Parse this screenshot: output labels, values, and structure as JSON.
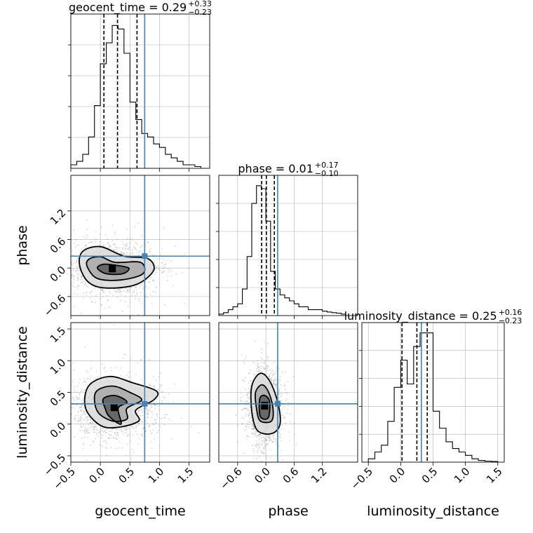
{
  "chart_data": {
    "type": "corner",
    "parameters": [
      "geocent_time",
      "phase",
      "luminosity_distance"
    ],
    "axis_labels": {
      "x": [
        "geocent_time",
        "phase",
        "luminosity_distance"
      ],
      "y_row1": "phase",
      "y_row2": "luminosity_distance"
    },
    "ranges": {
      "geocent_time": [
        -0.5,
        1.85
      ],
      "phase": [
        -1.0,
        1.95
      ],
      "luminosity_distance": [
        -0.6,
        1.6
      ]
    },
    "ticks": {
      "geocent_time": [
        "−0.5",
        "0.0",
        "0.5",
        "1.0",
        "1.5"
      ],
      "phase": [
        "−0.6",
        "0.0",
        "0.6",
        "1.2"
      ],
      "luminosity_distance": [
        "−0.5",
        "0.0",
        "0.5",
        "1.0",
        "1.5"
      ]
    },
    "tick_values": {
      "geocent_time": [
        -0.5,
        0.0,
        0.5,
        1.0,
        1.5
      ],
      "phase": [
        -0.6,
        0.0,
        0.6,
        1.2
      ],
      "luminosity_distance": [
        -0.5,
        0.0,
        0.5,
        1.0,
        1.5
      ]
    },
    "titles": [
      {
        "label": "geocent_time = 0.29",
        "sup": "+0.33",
        "sub": "−0.23"
      },
      {
        "label": "phase = 0.01",
        "sup": "+0.17",
        "sub": "−0.10"
      },
      {
        "label": "luminosity_distance = 0.25",
        "sup": "+0.16",
        "sub": "−0.23"
      }
    ],
    "truths": {
      "geocent_time": 0.75,
      "phase": 0.25,
      "luminosity_distance": 0.32
    },
    "quantiles": {
      "geocent_time": [
        0.06,
        0.29,
        0.62
      ],
      "phase": [
        -0.09,
        0.01,
        0.18
      ],
      "luminosity_distance": [
        0.02,
        0.25,
        0.41
      ]
    },
    "histograms": {
      "geocent_time": {
        "edges": [
          -0.5,
          -0.4,
          -0.3,
          -0.2,
          -0.1,
          0.0,
          0.1,
          0.2,
          0.3,
          0.4,
          0.5,
          0.6,
          0.7,
          0.8,
          0.9,
          1.0,
          1.1,
          1.2,
          1.3,
          1.4,
          1.5,
          1.6,
          1.7
        ],
        "counts": [
          1,
          2,
          4,
          9,
          18,
          30,
          36,
          41,
          40,
          33,
          19,
          14,
          10,
          9,
          7,
          6,
          4,
          3,
          2,
          1,
          1,
          0.5
        ]
      },
      "phase": {
        "edges": [
          -1.0,
          -0.9,
          -0.8,
          -0.7,
          -0.6,
          -0.5,
          -0.4,
          -0.3,
          -0.2,
          -0.1,
          0.0,
          0.1,
          0.2,
          0.3,
          0.4,
          0.5,
          0.6,
          0.7,
          0.8,
          0.9,
          1.0,
          1.1,
          1.2,
          1.3,
          1.4,
          1.5,
          1.6,
          1.7
        ],
        "counts": [
          0.5,
          1,
          2,
          3,
          4,
          9,
          20,
          38,
          44,
          43,
          32,
          15,
          9,
          7,
          6,
          5,
          4,
          3,
          3,
          2,
          2,
          2,
          1.5,
          1.2,
          1,
          0.8,
          0.5
        ]
      },
      "luminosity_distance": {
        "edges": [
          -0.5,
          -0.4,
          -0.3,
          -0.2,
          -0.1,
          0.0,
          0.1,
          0.2,
          0.3,
          0.4,
          0.5,
          0.6,
          0.7,
          0.8,
          0.9,
          1.0,
          1.1,
          1.2,
          1.3,
          1.4,
          1.5
        ],
        "counts": [
          1,
          3,
          5,
          12,
          22,
          30,
          23,
          34,
          38,
          38,
          15,
          10,
          6,
          4,
          3,
          2,
          1,
          0.5,
          0.3,
          0.2
        ]
      }
    },
    "contours": {
      "geocent_time_vs_phase": [
        [
          [
            -0.35,
            0.05
          ],
          [
            -0.2,
            -0.3
          ],
          [
            0.1,
            -0.42
          ],
          [
            0.6,
            -0.35
          ],
          [
            0.9,
            -0.05
          ],
          [
            0.8,
            0.2
          ],
          [
            0.4,
            0.25
          ],
          [
            0.0,
            0.45
          ],
          [
            -0.3,
            0.35
          ]
        ],
        [
          [
            -0.22,
            0.02
          ],
          [
            -0.05,
            -0.22
          ],
          [
            0.35,
            -0.25
          ],
          [
            0.72,
            -0.12
          ],
          [
            0.68,
            0.12
          ],
          [
            0.25,
            0.12
          ],
          [
            0.0,
            0.24
          ],
          [
            -0.2,
            0.18
          ]
        ],
        [
          [
            -0.05,
            0.0
          ],
          [
            0.1,
            -0.12
          ],
          [
            0.38,
            -0.12
          ],
          [
            0.48,
            0.0
          ],
          [
            0.25,
            0.06
          ],
          [
            0.05,
            0.08
          ]
        ]
      ],
      "geocent_time_vs_luminosity_distance": [
        [
          [
            -0.2,
            0.6
          ],
          [
            0.15,
            0.75
          ],
          [
            0.55,
            0.65
          ],
          [
            0.95,
            0.52
          ],
          [
            0.9,
            0.38
          ],
          [
            0.6,
            0.22
          ],
          [
            0.65,
            0.05
          ],
          [
            0.3,
            -0.05
          ],
          [
            0.0,
            -0.02
          ],
          [
            -0.25,
            0.25
          ]
        ],
        [
          [
            -0.08,
            0.5
          ],
          [
            0.2,
            0.6
          ],
          [
            0.5,
            0.5
          ],
          [
            0.7,
            0.38
          ],
          [
            0.45,
            0.25
          ],
          [
            0.45,
            0.08
          ],
          [
            0.2,
            0.05
          ],
          [
            -0.05,
            0.2
          ]
        ],
        [
          [
            0.05,
            0.4
          ],
          [
            0.25,
            0.45
          ],
          [
            0.45,
            0.35
          ],
          [
            0.3,
            0.25
          ],
          [
            0.35,
            0.0
          ],
          [
            0.15,
            0.12
          ],
          [
            0.08,
            0.25
          ]
        ]
      ],
      "phase_vs_luminosity_distance": [
        [
          [
            -0.3,
            0.6
          ],
          [
            -0.12,
            0.8
          ],
          [
            0.08,
            0.68
          ],
          [
            0.25,
            0.35
          ],
          [
            0.3,
            0.0
          ],
          [
            0.12,
            -0.15
          ],
          [
            -0.18,
            -0.1
          ],
          [
            -0.3,
            0.2
          ]
        ],
        [
          [
            -0.22,
            0.5
          ],
          [
            -0.08,
            0.62
          ],
          [
            0.06,
            0.5
          ],
          [
            0.15,
            0.25
          ],
          [
            0.12,
            0.05
          ],
          [
            -0.12,
            0.05
          ],
          [
            -0.2,
            0.25
          ]
        ],
        [
          [
            -0.13,
            0.4
          ],
          [
            -0.02,
            0.45
          ],
          [
            0.08,
            0.35
          ],
          [
            0.05,
            0.1
          ],
          [
            -0.12,
            0.12
          ]
        ]
      ]
    },
    "colors": {
      "truth": "#4682b4",
      "line": "#000000",
      "grid": "#b0b0b0",
      "scatter": "#808080"
    }
  }
}
